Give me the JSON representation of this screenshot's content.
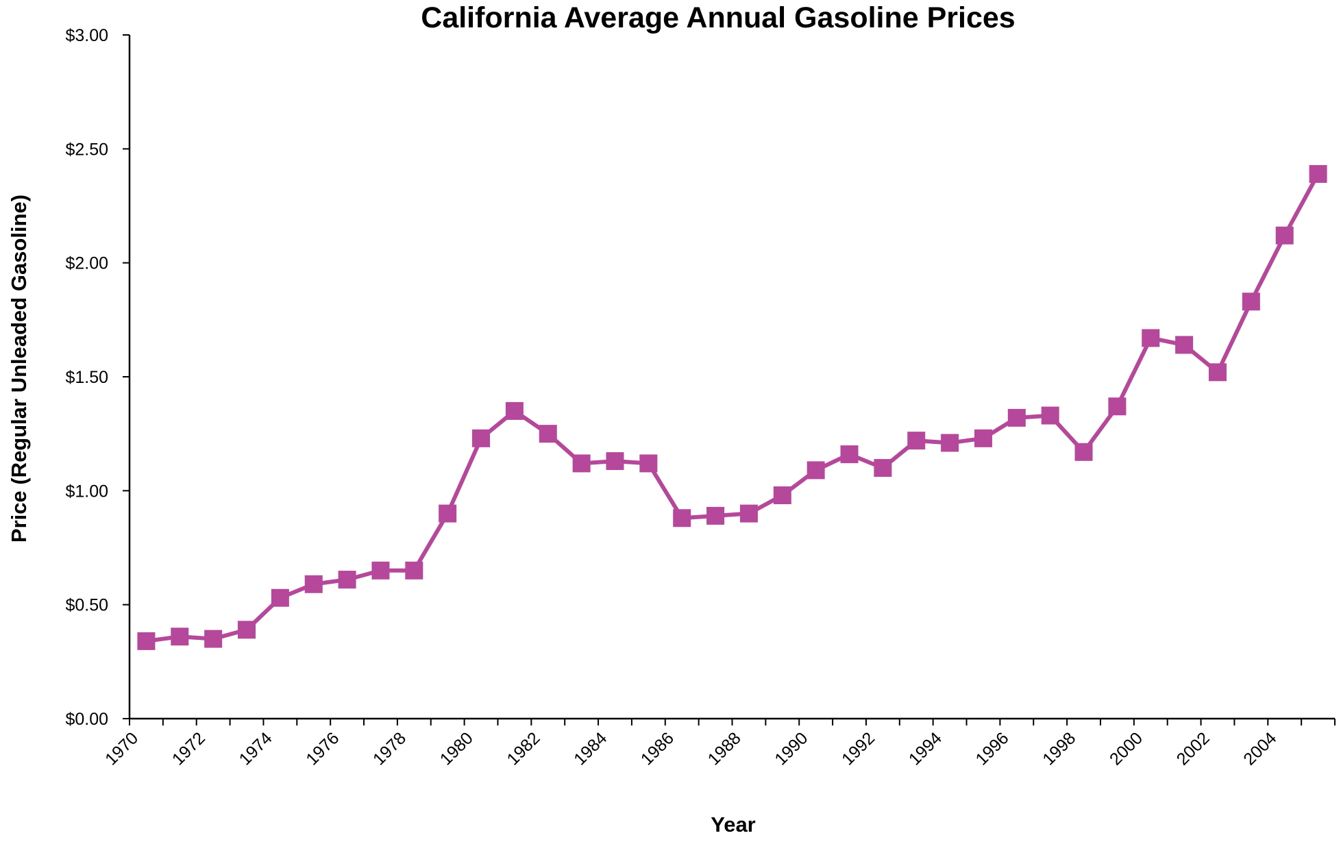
{
  "chart_data": {
    "type": "line",
    "title": "California Average Annual Gasoline Prices",
    "xlabel": "Year",
    "ylabel": "Price (Regular Unleaded Gasoline)",
    "xlim": [
      1970,
      2006
    ],
    "ylim": [
      0,
      3.0
    ],
    "x_tick_labels": [
      "1970",
      "1972",
      "1974",
      "1976",
      "1978",
      "1980",
      "1982",
      "1984",
      "1986",
      "1988",
      "1990",
      "1992",
      "1994",
      "1996",
      "1998",
      "2000",
      "2002",
      "2004"
    ],
    "y_tick_labels": [
      "$0.00",
      "$0.50",
      "$1.00",
      "$1.50",
      "$2.00",
      "$2.50",
      "$3.00"
    ],
    "y_tick_values": [
      0,
      0.5,
      1.0,
      1.5,
      2.0,
      2.5,
      3.0
    ],
    "grid": false,
    "legend": "none",
    "series": [
      {
        "color": "#b5489b",
        "marker": "square",
        "points": [
          {
            "x": 1970,
            "y": 0.34
          },
          {
            "x": 1971,
            "y": 0.36
          },
          {
            "x": 1972,
            "y": 0.35
          },
          {
            "x": 1973,
            "y": 0.39
          },
          {
            "x": 1974,
            "y": 0.53
          },
          {
            "x": 1975,
            "y": 0.59
          },
          {
            "x": 1976,
            "y": 0.61
          },
          {
            "x": 1977,
            "y": 0.65
          },
          {
            "x": 1978,
            "y": 0.65
          },
          {
            "x": 1979,
            "y": 0.9
          },
          {
            "x": 1980,
            "y": 1.23
          },
          {
            "x": 1981,
            "y": 1.35
          },
          {
            "x": 1982,
            "y": 1.25
          },
          {
            "x": 1983,
            "y": 1.12
          },
          {
            "x": 1984,
            "y": 1.13
          },
          {
            "x": 1985,
            "y": 1.12
          },
          {
            "x": 1986,
            "y": 0.88
          },
          {
            "x": 1987,
            "y": 0.89
          },
          {
            "x": 1988,
            "y": 0.9
          },
          {
            "x": 1989,
            "y": 0.98
          },
          {
            "x": 1990,
            "y": 1.09
          },
          {
            "x": 1991,
            "y": 1.16
          },
          {
            "x": 1992,
            "y": 1.1
          },
          {
            "x": 1993,
            "y": 1.22
          },
          {
            "x": 1994,
            "y": 1.21
          },
          {
            "x": 1995,
            "y": 1.23
          },
          {
            "x": 1996,
            "y": 1.32
          },
          {
            "x": 1997,
            "y": 1.33
          },
          {
            "x": 1998,
            "y": 1.17
          },
          {
            "x": 1999,
            "y": 1.37
          },
          {
            "x": 2000,
            "y": 1.67
          },
          {
            "x": 2001,
            "y": 1.64
          },
          {
            "x": 2002,
            "y": 1.52
          },
          {
            "x": 2003,
            "y": 1.83
          },
          {
            "x": 2004,
            "y": 2.12
          },
          {
            "x": 2005,
            "y": 2.39
          }
        ]
      }
    ]
  }
}
